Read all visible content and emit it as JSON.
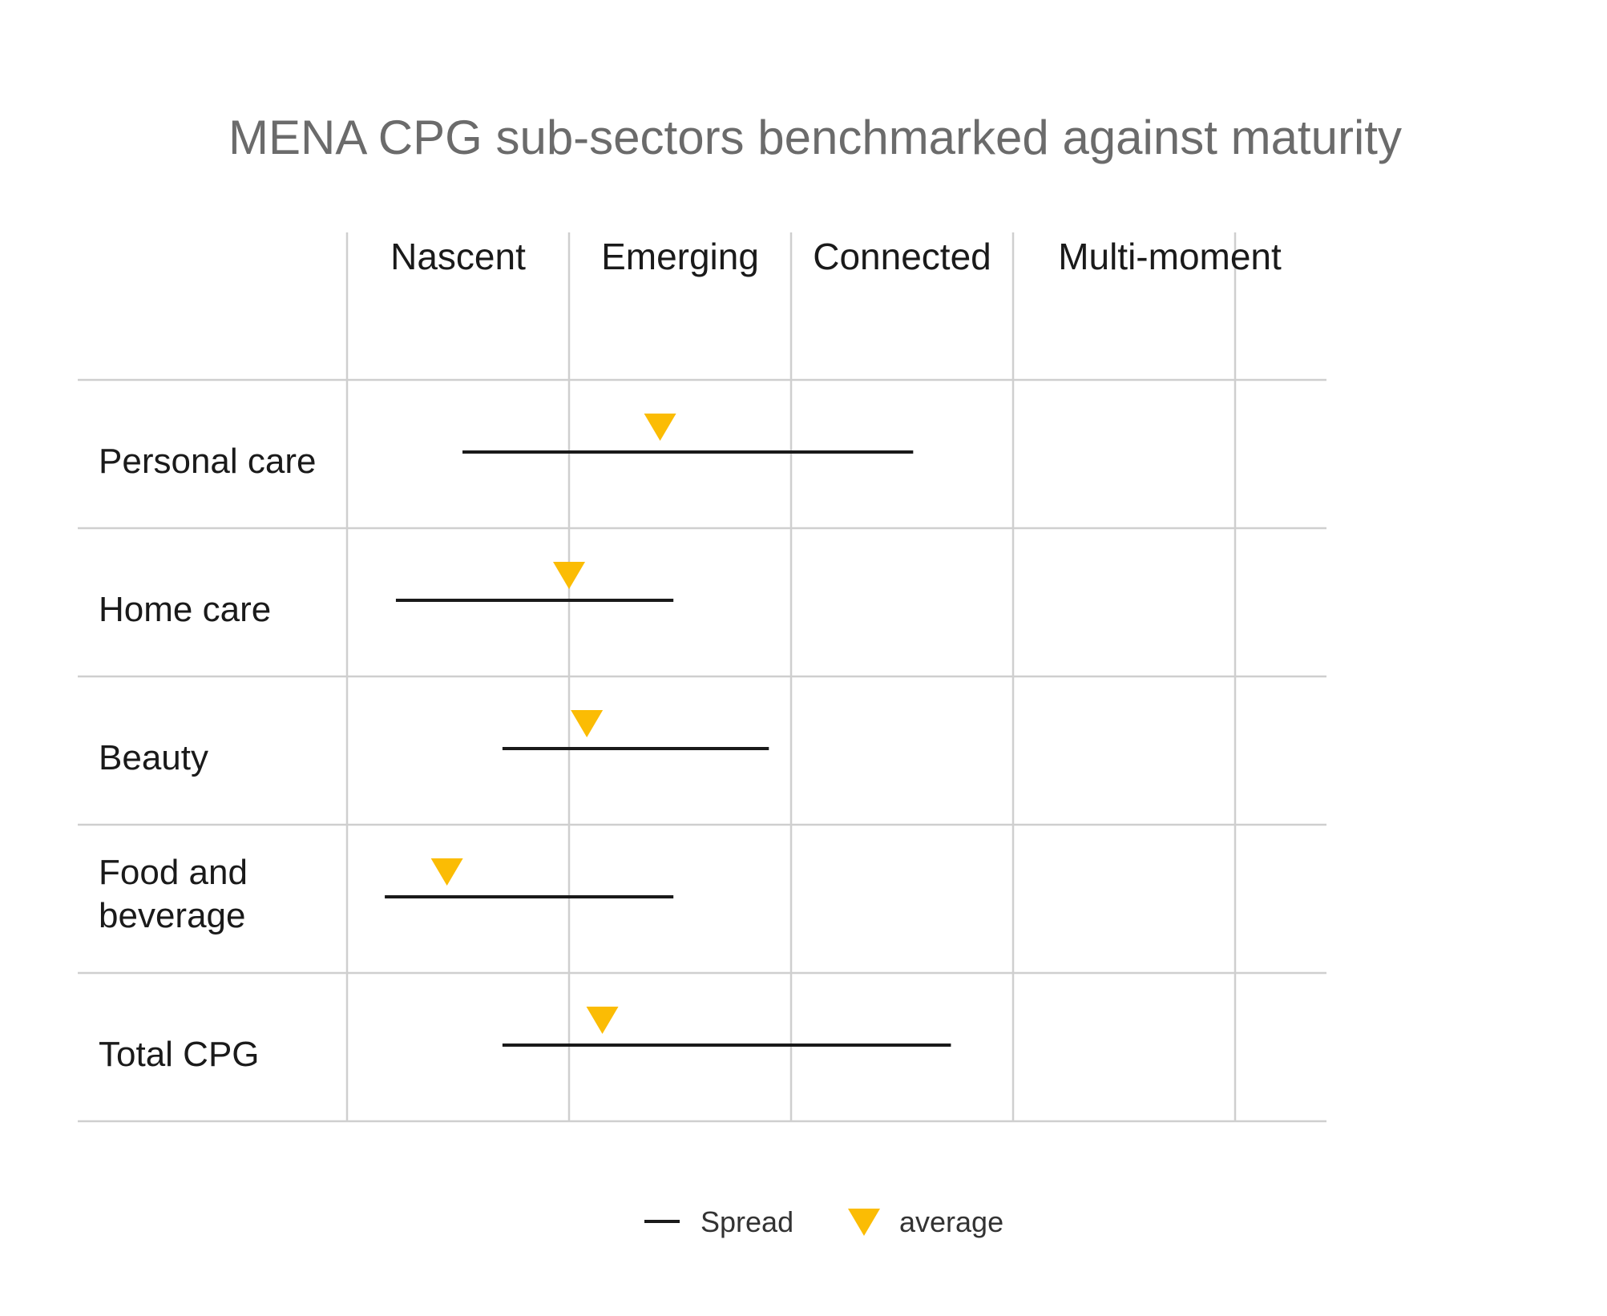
{
  "chart_data": {
    "type": "range-dot",
    "title": "MENA CPG sub-sectors benchmarked against maturity",
    "stages": [
      "Nascent",
      "Emerging",
      "Connected",
      "Multi-moment"
    ],
    "x_scale_note": "stage index: 0 = left edge of Nascent, 1 = Nascent/Emerging boundary, 2 = Emerging/Connected boundary, 3 = Connected/Multi-moment boundary, 4.4 = right edge of Multi-moment",
    "xlim": [
      0,
      4.4
    ],
    "rows": [
      {
        "label_lines": [
          "Personal care"
        ],
        "spread_min": 0.52,
        "spread_max": 2.55,
        "average": 1.41
      },
      {
        "label_lines": [
          "Home care"
        ],
        "spread_min": 0.22,
        "spread_max": 1.47,
        "average": 1.0
      },
      {
        "label_lines": [
          "Beauty"
        ],
        "spread_min": 0.7,
        "spread_max": 1.9,
        "average": 1.08
      },
      {
        "label_lines": [
          "Food and",
          "beverage"
        ],
        "spread_min": 0.17,
        "spread_max": 1.47,
        "average": 0.45
      },
      {
        "label_lines": [
          "Total CPG"
        ],
        "spread_min": 0.7,
        "spread_max": 2.72,
        "average": 1.15
      }
    ],
    "legend": {
      "position": "bottom-center",
      "spread_label": "Spread",
      "average_label": "average"
    },
    "colors": {
      "spread": "#1a1a1a",
      "average": "#fbbc04",
      "grid": "#cfcfcf",
      "title": "#6b6b6b"
    }
  }
}
